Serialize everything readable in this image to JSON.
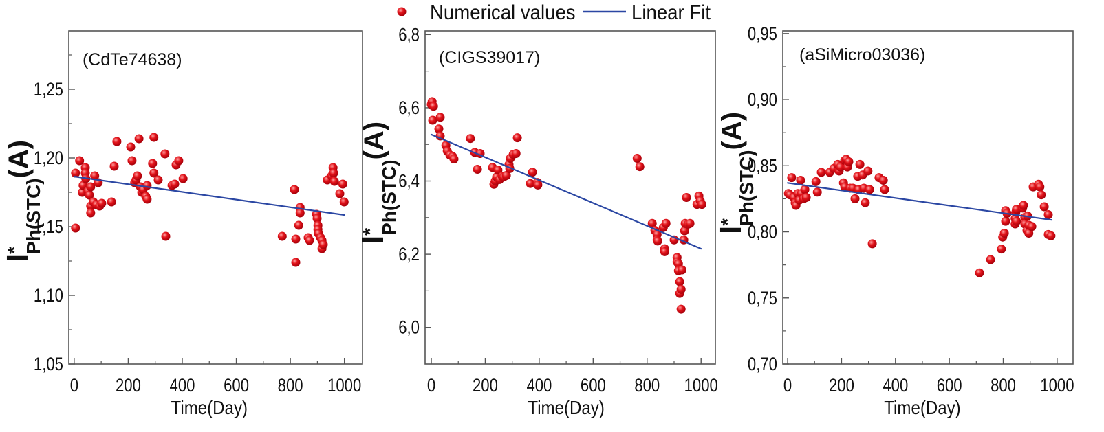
{
  "legend": {
    "points_label": "Numerical values",
    "fit_label": "Linear Fit"
  },
  "colors": {
    "points": "#e3141b",
    "fit": "#2b47a3",
    "frame": "#555555",
    "text": "#111111"
  },
  "chart_data": [
    {
      "type": "scatter",
      "panel_label": "(CdTe74638)",
      "xlabel": "Time(Day)",
      "ylabel": {
        "main": "I",
        "sup": "*",
        "sub": "Ph(STC)",
        "unit": "(A)"
      },
      "xlim": [
        -20,
        1067
      ],
      "ylim": [
        1.05,
        1.2925
      ],
      "xticks": [
        0,
        200,
        400,
        600,
        800,
        1000
      ],
      "xtick_labels": [
        "0",
        "200",
        "400",
        "600",
        "800",
        "1000"
      ],
      "yticks": [
        1.05,
        1.1,
        1.15,
        1.2,
        1.25
      ],
      "ytick_labels": [
        "1,05",
        "1,10",
        "1,15",
        "1,20",
        "1,25"
      ],
      "points": [
        [
          5,
          1.149
        ],
        [
          5,
          1.189
        ],
        [
          20,
          1.198
        ],
        [
          30,
          1.175
        ],
        [
          33,
          1.18
        ],
        [
          41,
          1.193
        ],
        [
          41,
          1.189
        ],
        [
          43,
          1.185
        ],
        [
          51,
          1.176
        ],
        [
          56,
          1.173
        ],
        [
          61,
          1.179
        ],
        [
          61,
          1.165
        ],
        [
          61,
          1.16
        ],
        [
          71,
          1.168
        ],
        [
          76,
          1.187
        ],
        [
          82,
          1.166
        ],
        [
          89,
          1.182
        ],
        [
          94,
          1.165
        ],
        [
          102,
          1.167
        ],
        [
          138,
          1.168
        ],
        [
          148,
          1.194
        ],
        [
          158,
          1.212
        ],
        [
          209,
          1.208
        ],
        [
          214,
          1.198
        ],
        [
          224,
          1.182
        ],
        [
          229,
          1.184
        ],
        [
          234,
          1.187
        ],
        [
          240,
          1.214
        ],
        [
          245,
          1.179
        ],
        [
          250,
          1.175
        ],
        [
          255,
          1.177
        ],
        [
          265,
          1.172
        ],
        [
          270,
          1.17
        ],
        [
          270,
          1.18
        ],
        [
          290,
          1.196
        ],
        [
          295,
          1.215
        ],
        [
          295,
          1.189
        ],
        [
          311,
          1.184
        ],
        [
          336,
          1.203
        ],
        [
          339,
          1.143
        ],
        [
          362,
          1.18
        ],
        [
          372,
          1.181
        ],
        [
          377,
          1.195
        ],
        [
          387,
          1.198
        ],
        [
          403,
          1.185
        ],
        [
          770,
          1.143
        ],
        [
          815,
          1.177
        ],
        [
          820,
          1.141
        ],
        [
          820,
          1.124
        ],
        [
          836,
          1.164
        ],
        [
          836,
          1.16
        ],
        [
          831,
          1.151
        ],
        [
          866,
          1.142
        ],
        [
          871,
          1.14
        ],
        [
          897,
          1.159
        ],
        [
          899,
          1.156
        ],
        [
          902,
          1.151
        ],
        [
          902,
          1.148
        ],
        [
          904,
          1.145
        ],
        [
          912,
          1.142
        ],
        [
          917,
          1.14
        ],
        [
          917,
          1.134
        ],
        [
          922,
          1.137
        ],
        [
          937,
          1.184
        ],
        [
          953,
          1.187
        ],
        [
          958,
          1.193
        ],
        [
          960,
          1.189
        ],
        [
          963,
          1.183
        ],
        [
          983,
          1.174
        ],
        [
          994,
          1.181
        ],
        [
          999,
          1.168
        ]
      ],
      "fit": {
        "x": [
          0,
          1000
        ],
        "y": [
          1.1865,
          1.1585
        ]
      }
    },
    {
      "type": "scatter",
      "panel_label": "(CIGS39017)",
      "xlabel": "Time(Day)",
      "ylabel": {
        "main": "I",
        "sup": "*",
        "sub": "Ph(STC)",
        "unit": "(A)"
      },
      "xlim": [
        -23,
        1053
      ],
      "ylim": [
        5.9,
        6.81
      ],
      "xticks": [
        0,
        200,
        400,
        600,
        800,
        1000
      ],
      "xtick_labels": [
        "0",
        "200",
        "400",
        "600",
        "800",
        "1000"
      ],
      "yticks": [
        6.0,
        6.2,
        6.4,
        6.6,
        6.8
      ],
      "ytick_labels": [
        "6,0",
        "6,2",
        "6,4",
        "6,6",
        "6,8"
      ],
      "points": [
        [
          0,
          6.609
        ],
        [
          3,
          6.617
        ],
        [
          8,
          6.604
        ],
        [
          5,
          6.566
        ],
        [
          33,
          6.574
        ],
        [
          28,
          6.542
        ],
        [
          33,
          6.523
        ],
        [
          54,
          6.497
        ],
        [
          59,
          6.482
        ],
        [
          69,
          6.471
        ],
        [
          79,
          6.467
        ],
        [
          84,
          6.46
        ],
        [
          145,
          6.516
        ],
        [
          161,
          6.478
        ],
        [
          171,
          6.432
        ],
        [
          181,
          6.475
        ],
        [
          227,
          6.437
        ],
        [
          232,
          6.391
        ],
        [
          237,
          6.4
        ],
        [
          242,
          6.411
        ],
        [
          247,
          6.43
        ],
        [
          253,
          6.404
        ],
        [
          263,
          6.413
        ],
        [
          268,
          6.411
        ],
        [
          278,
          6.415
        ],
        [
          288,
          6.445
        ],
        [
          291,
          6.434
        ],
        [
          293,
          6.462
        ],
        [
          304,
          6.473
        ],
        [
          319,
          6.518
        ],
        [
          314,
          6.475
        ],
        [
          367,
          6.393
        ],
        [
          375,
          6.424
        ],
        [
          393,
          6.396
        ],
        [
          395,
          6.389
        ],
        [
          763,
          6.462
        ],
        [
          773,
          6.439
        ],
        [
          819,
          6.284
        ],
        [
          829,
          6.265
        ],
        [
          837,
          6.254
        ],
        [
          837,
          6.239
        ],
        [
          839,
          6.236
        ],
        [
          860,
          6.273
        ],
        [
          865,
          6.215
        ],
        [
          865,
          6.207
        ],
        [
          870,
          6.284
        ],
        [
          900,
          6.239
        ],
        [
          911,
          6.191
        ],
        [
          911,
          6.179
        ],
        [
          916,
          6.174
        ],
        [
          916,
          6.155
        ],
        [
          921,
          6.125
        ],
        [
          921,
          6.093
        ],
        [
          926,
          6.104
        ],
        [
          926,
          6.05
        ],
        [
          929,
          6.157
        ],
        [
          936,
          6.239
        ],
        [
          939,
          6.264
        ],
        [
          941,
          6.284
        ],
        [
          946,
          6.355
        ],
        [
          952,
          6.282
        ],
        [
          959,
          6.284
        ],
        [
          985,
          6.336
        ],
        [
          992,
          6.359
        ],
        [
          997,
          6.346
        ],
        [
          1003,
          6.336
        ]
      ],
      "fit": {
        "x": [
          0,
          1000
        ],
        "y": [
          6.527,
          6.215
        ]
      }
    },
    {
      "type": "scatter",
      "panel_label": "(aSiMicro03036)",
      "xlabel": "Time(Day)",
      "ylabel": {
        "main": "I",
        "sup": "*",
        "sub": "Ph(STC)",
        "unit": "(A)"
      },
      "xlim": [
        -18,
        1059
      ],
      "ylim": [
        0.7,
        0.952
      ],
      "xticks": [
        0,
        200,
        400,
        600,
        800,
        1000
      ],
      "xtick_labels": [
        "0",
        "200",
        "400",
        "600",
        "800",
        "1000"
      ],
      "yticks": [
        0.7,
        0.75,
        0.8,
        0.85,
        0.9,
        0.95
      ],
      "ytick_labels": [
        "0,70",
        "0,75",
        "0,80",
        "0,85",
        "0,90",
        "0,95"
      ],
      "points": [
        [
          3,
          0.829
        ],
        [
          8,
          0.828
        ],
        [
          15,
          0.841
        ],
        [
          23,
          0.826
        ],
        [
          28,
          0.822
        ],
        [
          31,
          0.82
        ],
        [
          38,
          0.829
        ],
        [
          43,
          0.824
        ],
        [
          48,
          0.839
        ],
        [
          51,
          0.829
        ],
        [
          59,
          0.825
        ],
        [
          64,
          0.832
        ],
        [
          69,
          0.826
        ],
        [
          105,
          0.838
        ],
        [
          110,
          0.83
        ],
        [
          125,
          0.845
        ],
        [
          156,
          0.845
        ],
        [
          171,
          0.848
        ],
        [
          186,
          0.851
        ],
        [
          191,
          0.846
        ],
        [
          196,
          0.849
        ],
        [
          207,
          0.837
        ],
        [
          212,
          0.854
        ],
        [
          212,
          0.834
        ],
        [
          217,
          0.855
        ],
        [
          222,
          0.849
        ],
        [
          227,
          0.853
        ],
        [
          232,
          0.833
        ],
        [
          242,
          0.833
        ],
        [
          250,
          0.825
        ],
        [
          260,
          0.842
        ],
        [
          263,
          0.832
        ],
        [
          268,
          0.851
        ],
        [
          278,
          0.843
        ],
        [
          283,
          0.833
        ],
        [
          288,
          0.822
        ],
        [
          298,
          0.846
        ],
        [
          304,
          0.832
        ],
        [
          314,
          0.791
        ],
        [
          339,
          0.841
        ],
        [
          355,
          0.839
        ],
        [
          360,
          0.832
        ],
        [
          712,
          0.769
        ],
        [
          753,
          0.779
        ],
        [
          793,
          0.787
        ],
        [
          798,
          0.796
        ],
        [
          804,
          0.799
        ],
        [
          809,
          0.816
        ],
        [
          809,
          0.808
        ],
        [
          814,
          0.814
        ],
        [
          844,
          0.81
        ],
        [
          844,
          0.806
        ],
        [
          847,
          0.815
        ],
        [
          849,
          0.808
        ],
        [
          849,
          0.817
        ],
        [
          872,
          0.818
        ],
        [
          875,
          0.82
        ],
        [
          880,
          0.811
        ],
        [
          880,
          0.806
        ],
        [
          888,
          0.801
        ],
        [
          890,
          0.812
        ],
        [
          895,
          0.799
        ],
        [
          895,
          0.805
        ],
        [
          906,
          0.804
        ],
        [
          911,
          0.834
        ],
        [
          931,
          0.836
        ],
        [
          936,
          0.834
        ],
        [
          941,
          0.828
        ],
        [
          952,
          0.819
        ],
        [
          967,
          0.813
        ],
        [
          967,
          0.798
        ],
        [
          977,
          0.797
        ]
      ],
      "fit": {
        "x": [
          0,
          980
        ],
        "y": [
          0.837,
          0.809
        ]
      }
    }
  ]
}
